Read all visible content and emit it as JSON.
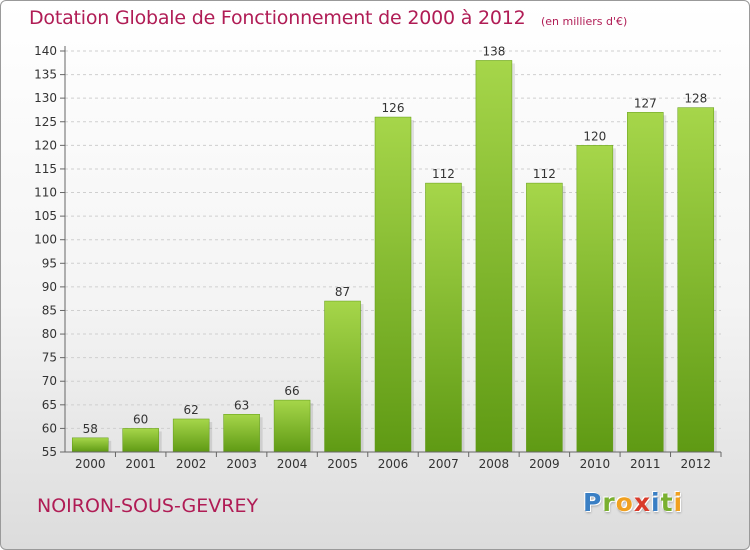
{
  "header": {
    "title": "Dotation Globale de Fonctionnement de 2000 à 2012",
    "subtitle": "(en milliers d'€)"
  },
  "footer": {
    "commune": "NOIRON-SOUS-GEVREY",
    "logo_text": "Proxiti"
  },
  "colors": {
    "title": "#b01c55",
    "bar_light": "#a6d64a",
    "bar_dark": "#5f9a14",
    "axis_text": "#333333",
    "grid": "#cfcfcf"
  },
  "chart_data": {
    "type": "bar",
    "categories": [
      "2000",
      "2001",
      "2002",
      "2003",
      "2004",
      "2005",
      "2006",
      "2007",
      "2008",
      "2009",
      "2010",
      "2011",
      "2012"
    ],
    "values": [
      58,
      60,
      62,
      63,
      66,
      87,
      126,
      112,
      138,
      112,
      120,
      127,
      128
    ],
    "ylim": [
      55,
      140
    ],
    "yticks": [
      55,
      60,
      65,
      70,
      75,
      80,
      85,
      90,
      95,
      100,
      105,
      110,
      115,
      120,
      125,
      130,
      135,
      140
    ],
    "grid": "horizontal dashed",
    "data_labels": true
  }
}
